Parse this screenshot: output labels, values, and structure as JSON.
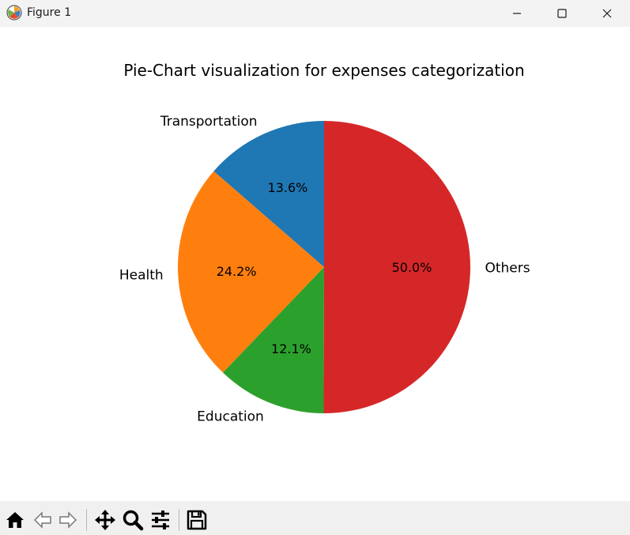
{
  "window": {
    "title": "Figure 1",
    "controls": [
      "minimize",
      "maximize",
      "close"
    ],
    "app_icon": "matplotlib-icon"
  },
  "toolbar": {
    "buttons": [
      {
        "name": "home",
        "icon": "home-icon"
      },
      {
        "name": "back",
        "icon": "back-arrow-icon"
      },
      {
        "name": "forward",
        "icon": "forward-arrow-icon"
      },
      {
        "name": "pan",
        "icon": "move-icon"
      },
      {
        "name": "zoom",
        "icon": "zoom-icon"
      },
      {
        "name": "configure",
        "icon": "sliders-icon"
      },
      {
        "name": "save",
        "icon": "save-icon"
      }
    ]
  },
  "chart_data": {
    "type": "pie",
    "title": "Pie-Chart visualization for expenses categorization",
    "labels": [
      "Transportation",
      "Health",
      "Education",
      "Others"
    ],
    "values": [
      13.6,
      24.2,
      12.1,
      50.0
    ],
    "autopct": [
      "13.6%",
      "24.2%",
      "12.1%",
      "50.0%"
    ],
    "colors": [
      "#1f77b4",
      "#ff7f0e",
      "#2ca02c",
      "#d62728"
    ],
    "start_angle_deg": 90,
    "direction": "counterclockwise"
  }
}
